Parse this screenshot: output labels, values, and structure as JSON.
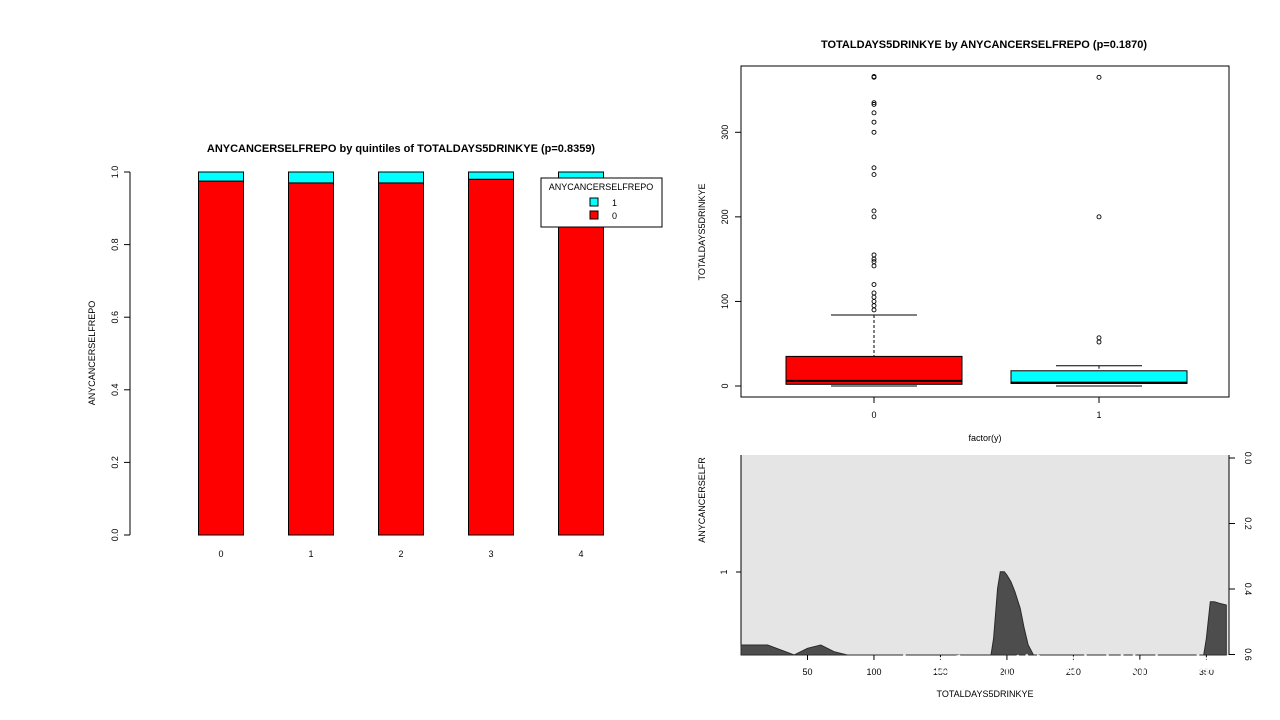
{
  "chart_data": [
    {
      "type": "bar",
      "stacked": true,
      "title": "ANYCANCERSELFREPO by quintiles of TOTALDAYS5DRINKYE (p=0.8359)",
      "ylabel": "ANYCANCERSELFREPO",
      "xlabel": "",
      "categories": [
        "0",
        "1",
        "2",
        "3",
        "4"
      ],
      "ylim": [
        0,
        1
      ],
      "yticks": [
        "0.0",
        "0.2",
        "0.4",
        "0.6",
        "0.8",
        "1.0"
      ],
      "series": [
        {
          "name": "0",
          "color": "#ff0000",
          "values": [
            0.975,
            0.97,
            0.97,
            0.98,
            0.97
          ]
        },
        {
          "name": "1",
          "color": "#00ffff",
          "values": [
            0.025,
            0.03,
            0.03,
            0.02,
            0.03
          ]
        }
      ],
      "legend": {
        "title": "ANYCANCERSELFREPO",
        "labels": [
          "1",
          "0"
        ],
        "position": "top-right"
      }
    },
    {
      "type": "boxplot",
      "title": "TOTALDAYS5DRINKYE by ANYCANCERSELFREPO (p=0.1870)",
      "xlabel": "factor(y)",
      "ylabel": "TOTALDAYS5DRINKYE",
      "categories": [
        "0",
        "1"
      ],
      "ylim": [
        0,
        370
      ],
      "yticks": [
        "0",
        "100",
        "200",
        "300"
      ],
      "boxes": [
        {
          "category": "0",
          "color": "#ff0000",
          "min": 0,
          "q1": 2,
          "median": 6,
          "q3": 35,
          "whisker_high": 84,
          "outliers": [
            90,
            95,
            100,
            105,
            110,
            120,
            142,
            147,
            150,
            155,
            200,
            207,
            250,
            258,
            300,
            312,
            323,
            333,
            335,
            365,
            366
          ]
        },
        {
          "category": "1",
          "color": "#00ffff",
          "min": 0,
          "q1": 3,
          "median": 4,
          "q3": 18,
          "whisker_high": 24,
          "outliers": [
            52,
            57,
            200,
            365
          ]
        }
      ]
    },
    {
      "type": "area",
      "xlabel": "TOTALDAYS5DRINKYE",
      "ylabel": "ANYCANCERSELFR",
      "left_tick": "1",
      "xticks": [
        "50",
        "100",
        "150",
        "200",
        "250",
        "300",
        "350"
      ],
      "right_ticks": [
        "0.0",
        "0.2",
        "0.4",
        "0.6"
      ],
      "xlim": [
        0,
        365
      ],
      "density_ylim": [
        0,
        0.6
      ],
      "x": [
        0,
        10,
        20,
        30,
        40,
        50,
        60,
        70,
        80,
        90,
        100,
        110,
        120,
        130,
        140,
        150,
        160,
        170,
        180,
        188,
        190,
        193,
        195,
        198,
        200,
        203,
        206,
        210,
        213,
        216,
        220,
        230,
        250,
        300,
        348,
        350,
        353,
        356,
        360,
        365
      ],
      "density": [
        0.03,
        0.03,
        0.03,
        0.015,
        0.0,
        0.02,
        0.03,
        0.01,
        0.0,
        0.0,
        0.0,
        0.0,
        0.0,
        0.0,
        0.0,
        0.0,
        0.0,
        0.0,
        0.0,
        0.0,
        0.05,
        0.2,
        0.25,
        0.25,
        0.24,
        0.22,
        0.19,
        0.14,
        0.08,
        0.03,
        0.0,
        0.0,
        0.0,
        0.0,
        0.0,
        0.05,
        0.16,
        0.16,
        0.155,
        0.15
      ]
    }
  ],
  "watermark": "知乎 @学吧树的师奇"
}
